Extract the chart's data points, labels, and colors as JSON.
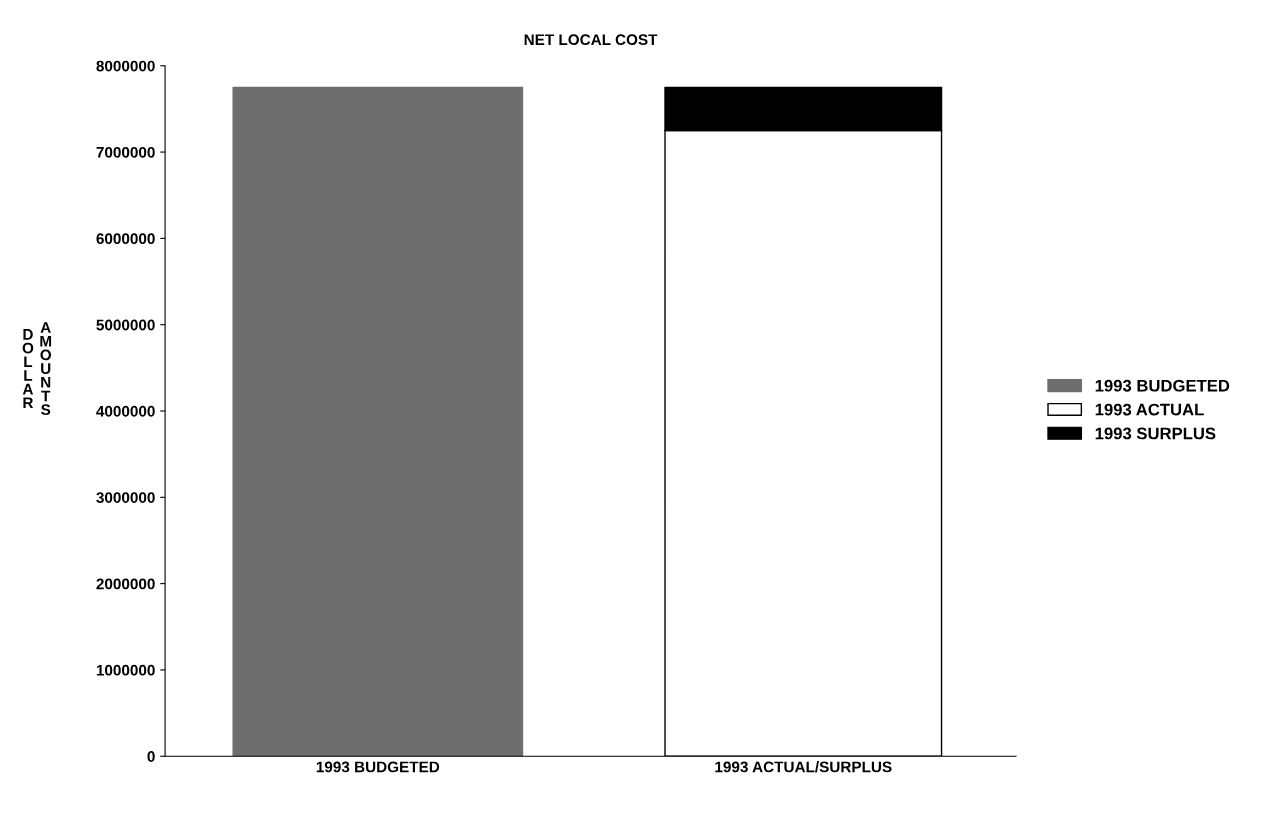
{
  "chart_data": {
    "type": "bar",
    "title": "NET LOCAL COST",
    "ylabel": "DOLLAR AMOUNTS",
    "stacked": true,
    "categories": [
      "1993 BUDGETED",
      "1993 ACTUAL/SURPLUS"
    ],
    "series": [
      {
        "name": "1993 BUDGETED",
        "color": "#6e6e6e",
        "values": [
          7750000,
          null
        ]
      },
      {
        "name": "1993 ACTUAL",
        "color": "#ffffff",
        "values": [
          null,
          7250000
        ]
      },
      {
        "name": "1993 SURPLUS",
        "color": "#000000",
        "values": [
          null,
          500000
        ]
      }
    ],
    "ylim": [
      0,
      8000000
    ],
    "yticks": [
      0,
      1000000,
      2000000,
      3000000,
      4000000,
      5000000,
      6000000,
      7000000,
      8000000
    ],
    "grid": false,
    "legend": "right"
  }
}
